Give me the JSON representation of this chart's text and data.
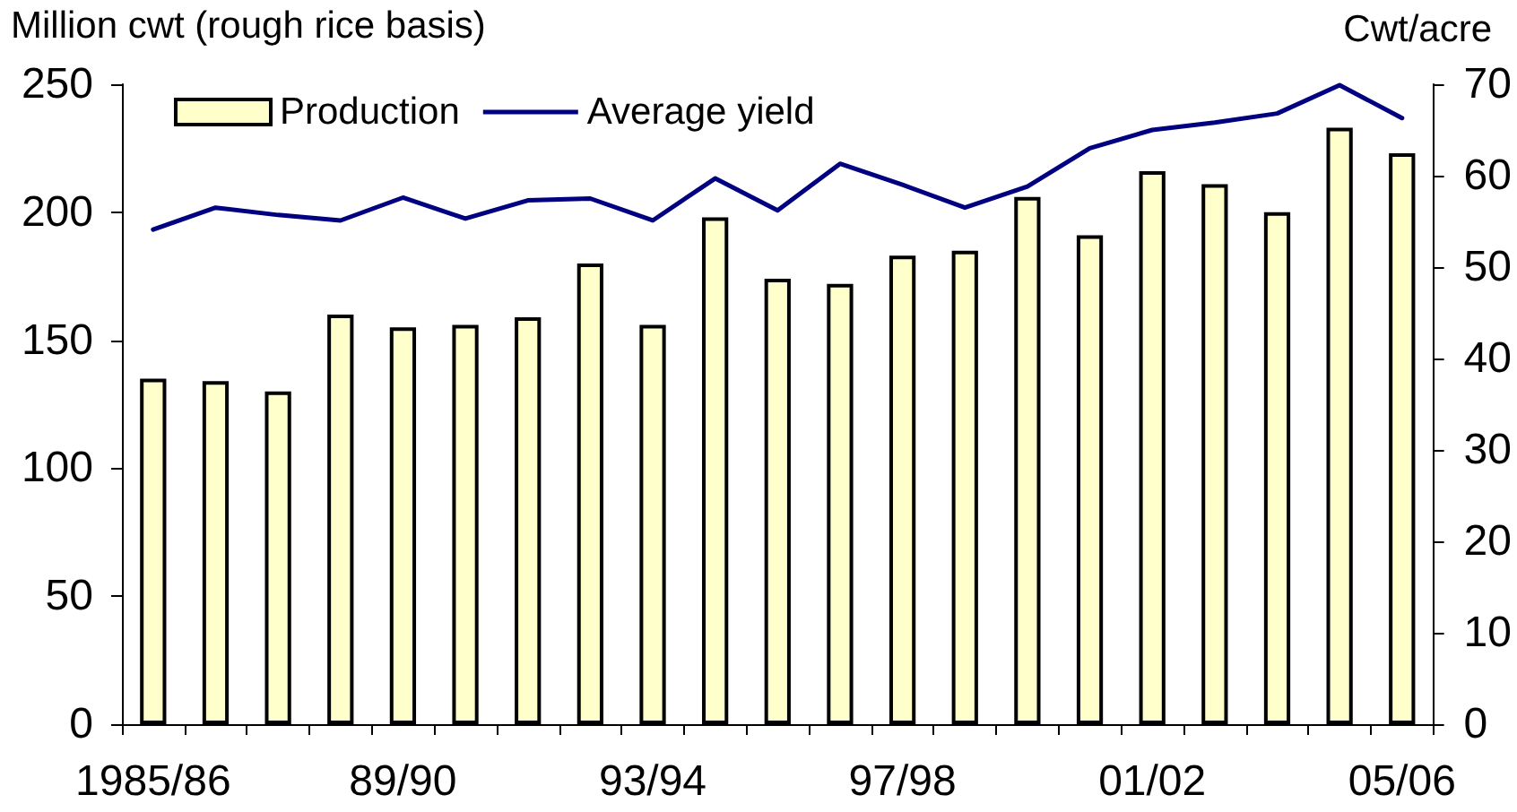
{
  "chart_data": {
    "type": "bar",
    "ylabel": "Million cwt (rough rice basis)",
    "y2label": "Cwt/acre",
    "categories": [
      "1985/86",
      null,
      null,
      null,
      "89/90",
      null,
      null,
      null,
      "93/94",
      null,
      null,
      null,
      "97/98",
      null,
      null,
      null,
      "01/02",
      null,
      null,
      null,
      "05/06"
    ],
    "series": [
      {
        "name": "Production",
        "color": "#ffffcc",
        "values": [
          135,
          134,
          130,
          160,
          155,
          156,
          159,
          180,
          156,
          198,
          174,
          172,
          183,
          185,
          206,
          191,
          216,
          211,
          200,
          233,
          223
        ]
      },
      {
        "name": "Average yield",
        "type": "line",
        "axis": "y2",
        "color": "#000080",
        "values": [
          54.1,
          56.5,
          55.7,
          55.1,
          57.6,
          55.3,
          57.3,
          57.5,
          55.1,
          59.7,
          56.2,
          61.3,
          59.0,
          56.5,
          58.8,
          63.0,
          65.0,
          65.8,
          66.8,
          69.9,
          66.3
        ]
      }
    ],
    "ylim": [
      0,
      250
    ],
    "yticks": [
      0,
      50,
      100,
      150,
      200,
      250
    ],
    "y2lim": [
      0,
      70
    ],
    "y2ticks": [
      0,
      10,
      20,
      30,
      40,
      50,
      60,
      70
    ],
    "legend": "top left",
    "marker": "none",
    "line_style": "solid"
  }
}
